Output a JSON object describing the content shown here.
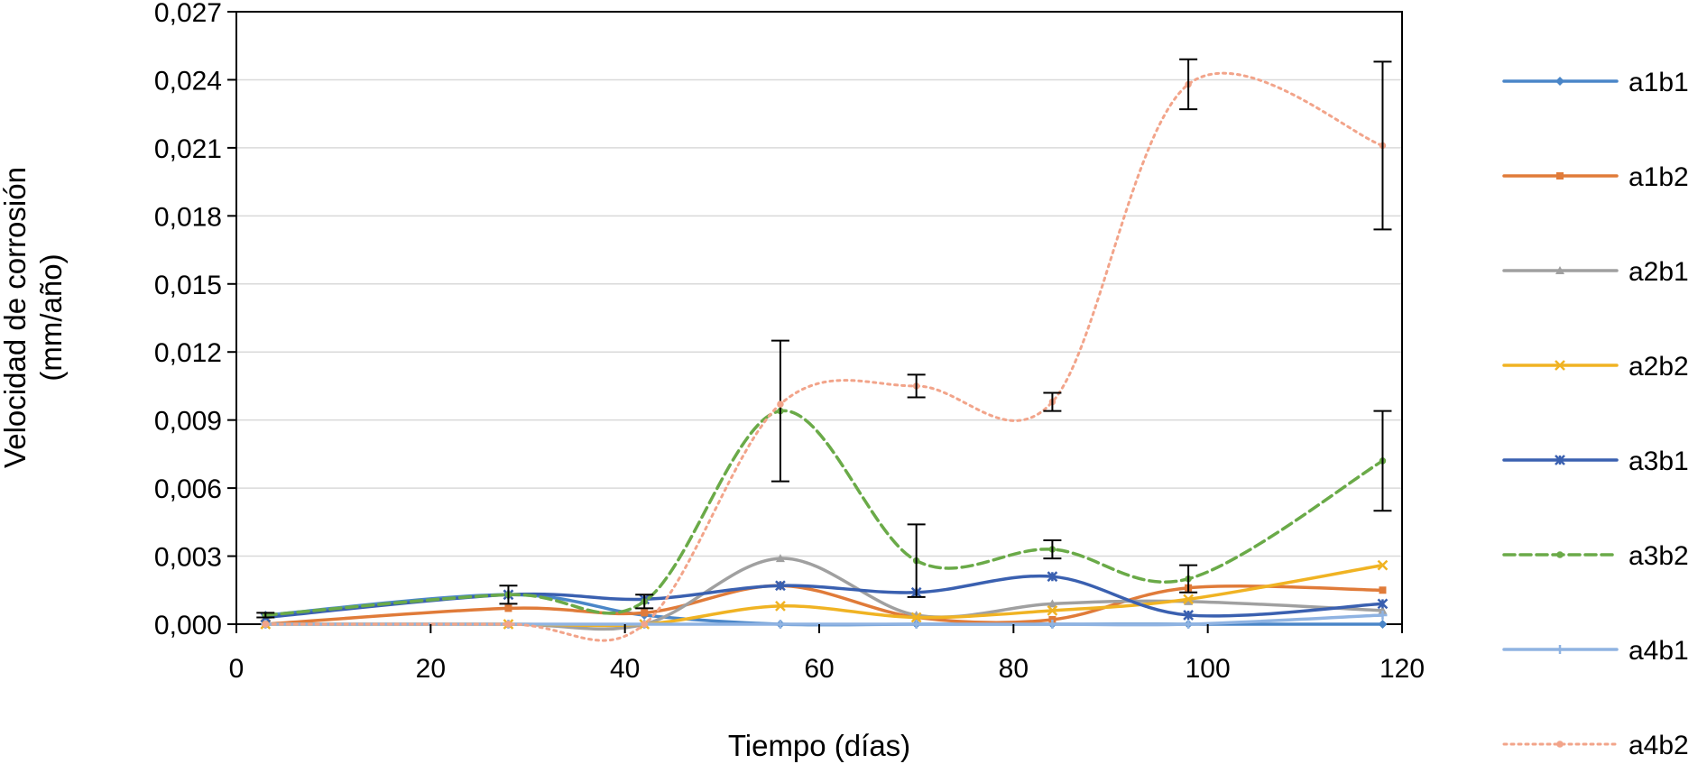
{
  "chart_data": {
    "type": "line",
    "title": "",
    "xlabel": "Tiempo (días)",
    "ylabel_line1": "Velocidad de corrosión",
    "ylabel_line2": "(mm/año)",
    "xlim": [
      0,
      120
    ],
    "ylim": [
      0,
      0.027
    ],
    "x_ticks": [
      0,
      20,
      40,
      60,
      80,
      100,
      120
    ],
    "x_tick_labels": [
      "0",
      "20",
      "40",
      "60",
      "80",
      "100",
      "120"
    ],
    "y_ticks": [
      0,
      0.003,
      0.006,
      0.009,
      0.012,
      0.015,
      0.018,
      0.021,
      0.024,
      0.027
    ],
    "y_tick_labels": [
      "0,000",
      "0,003",
      "0,006",
      "0,009",
      "0,012",
      "0,015",
      "0,018",
      "0,021",
      "0,024",
      "0,027"
    ],
    "grid": "horizontal",
    "legend_position": "right",
    "x": [
      3,
      28,
      42,
      56,
      70,
      84,
      98,
      118
    ],
    "series": [
      {
        "name": "a1b1",
        "color": "#4A86C8",
        "dash": "solid",
        "marker": "diamond",
        "values": [
          0.0004,
          0.0013,
          0.0004,
          0.0,
          0.0,
          0.0,
          0.0,
          0.0
        ],
        "errors": []
      },
      {
        "name": "a1b2",
        "color": "#E07B39",
        "dash": "solid",
        "marker": "square",
        "values": [
          0.0,
          0.0007,
          0.0005,
          0.0017,
          0.0003,
          0.0002,
          0.0016,
          0.0015
        ],
        "errors": []
      },
      {
        "name": "a2b1",
        "color": "#A0A0A0",
        "dash": "solid",
        "marker": "triangle",
        "values": [
          0.0,
          0.0,
          0.0,
          0.0029,
          0.0004,
          0.0009,
          0.001,
          0.0006
        ],
        "errors": []
      },
      {
        "name": "a2b2",
        "color": "#F0B323",
        "dash": "solid",
        "marker": "x",
        "values": [
          0.0,
          0.0,
          0.0,
          0.0008,
          0.0003,
          0.0006,
          0.0011,
          0.0026
        ],
        "errors": []
      },
      {
        "name": "a3b1",
        "color": "#3A60B0",
        "dash": "solid",
        "marker": "star",
        "values": [
          0.0003,
          0.0013,
          0.0011,
          0.0017,
          0.0014,
          0.0021,
          0.0004,
          0.0009
        ],
        "errors": []
      },
      {
        "name": "a3b2",
        "color": "#6AAA48",
        "dash": "dashed",
        "marker": "circle",
        "values": [
          0.0004,
          0.0013,
          0.001,
          0.0094,
          0.0028,
          0.0033,
          0.002,
          0.0072
        ],
        "errors": [
          0.0001,
          0.0004,
          0.0003,
          0.0031,
          0.0016,
          0.0004,
          0.0006,
          0.0022
        ]
      },
      {
        "name": "a4b1",
        "color": "#8FB3E2",
        "dash": "solid",
        "marker": "plus",
        "values": [
          0.0,
          0.0,
          0.0,
          0.0,
          0.0,
          0.0,
          0.0,
          0.0004
        ],
        "errors": []
      },
      {
        "name": "a4b2",
        "color": "#F2A48A",
        "dash": "dotted",
        "marker": "circle",
        "values": [
          0.0,
          0.0,
          0.0,
          0.0097,
          0.0105,
          0.0098,
          0.0238,
          0.0211
        ],
        "errors": [
          0.0,
          0.0,
          0.0,
          0.0,
          0.0005,
          0.0004,
          0.0011,
          0.0037
        ]
      }
    ]
  }
}
